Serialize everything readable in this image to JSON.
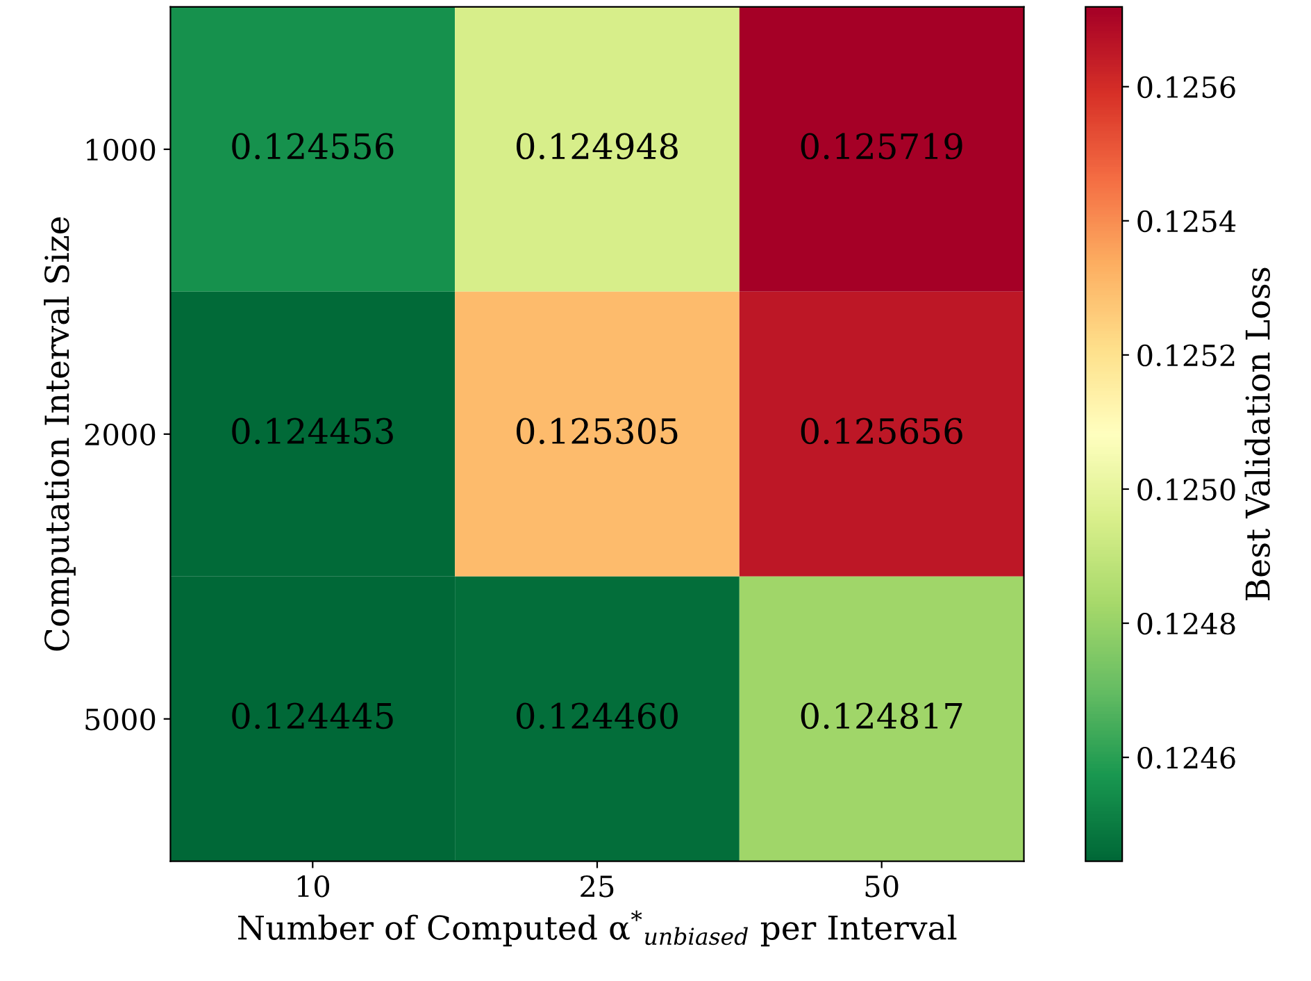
{
  "chart_data": {
    "type": "heatmap",
    "xlabel": "Number of Computed α$^{*}$$_{unbiased}$ per Interval",
    "ylabel": "Computation Interval Size",
    "clabel": "Best Validation Loss",
    "categories": [
      "10",
      "25",
      "50"
    ],
    "y_categories": [
      "1000",
      "2000",
      "5000"
    ],
    "cells": [
      [
        0.124556,
        0.124948,
        0.125719
      ],
      [
        0.124453,
        0.125305,
        0.125656
      ],
      [
        0.124445,
        0.12446,
        0.124817
      ]
    ],
    "clim": [
      0.124445,
      0.125719
    ],
    "cticks": [
      0.1246,
      0.1248,
      {
        "value": 0.125,
        "label": "0.1250"
      },
      0.1252,
      0.1254,
      0.1256
    ],
    "cell_labels": [
      [
        "0.124556",
        "0.124948",
        "0.125719"
      ],
      [
        "0.124453",
        "0.125305",
        "0.125656"
      ],
      [
        "0.124445",
        "0.124460",
        "0.124817"
      ]
    ]
  }
}
